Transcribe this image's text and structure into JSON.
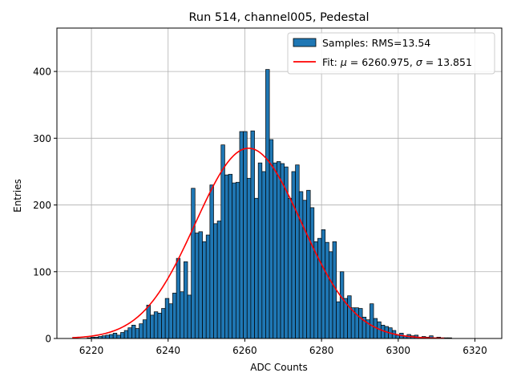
{
  "chart_data": {
    "type": "bar",
    "title": "Run 514, channel005, Pedestal",
    "xlabel": "ADC Counts",
    "ylabel": "Entries",
    "xlim": [
      6211,
      6327
    ],
    "ylim": [
      0,
      465
    ],
    "xticks": [
      6220,
      6240,
      6260,
      6280,
      6300,
      6320
    ],
    "yticks": [
      0,
      100,
      200,
      300,
      400
    ],
    "grid": true,
    "legend_position": "top-right",
    "series": [
      {
        "name": "Samples: RMS=13.54",
        "kind": "histogram",
        "color": "#1f77b4",
        "edgecolor": "#000000",
        "bin_width": 0.97,
        "x_start": 6215,
        "values": [
          0,
          0,
          0,
          0,
          1,
          2,
          2,
          3,
          4,
          5,
          6,
          8,
          5,
          9,
          12,
          16,
          20,
          15,
          22,
          28,
          50,
          35,
          40,
          38,
          45,
          60,
          52,
          68,
          120,
          70,
          115,
          65,
          225,
          158,
          160,
          145,
          155,
          230,
          172,
          176,
          290,
          245,
          246,
          233,
          234,
          310,
          310,
          240,
          311,
          210,
          263,
          250,
          403,
          298,
          263,
          265,
          262,
          257,
          210,
          250,
          260,
          220,
          207,
          222,
          196,
          145,
          150,
          163,
          144,
          130,
          145,
          55,
          100,
          60,
          64,
          46,
          46,
          45,
          32,
          28,
          52,
          30,
          25,
          20,
          18,
          16,
          12,
          5,
          8,
          4,
          6,
          4,
          5,
          2,
          3,
          2,
          4,
          1,
          2,
          1,
          1,
          1
        ]
      },
      {
        "name": "Fit: μ = 6260.975, σ = 13.851",
        "kind": "gaussian-fit",
        "color": "#ff0000",
        "mu": 6260.975,
        "sigma": 13.851,
        "amplitude": 285,
        "x_range": [
          6215,
          6312
        ]
      }
    ],
    "legend": [
      "Samples: RMS=13.54",
      "Fit: μ = 6260.975, σ = 13.851"
    ]
  }
}
